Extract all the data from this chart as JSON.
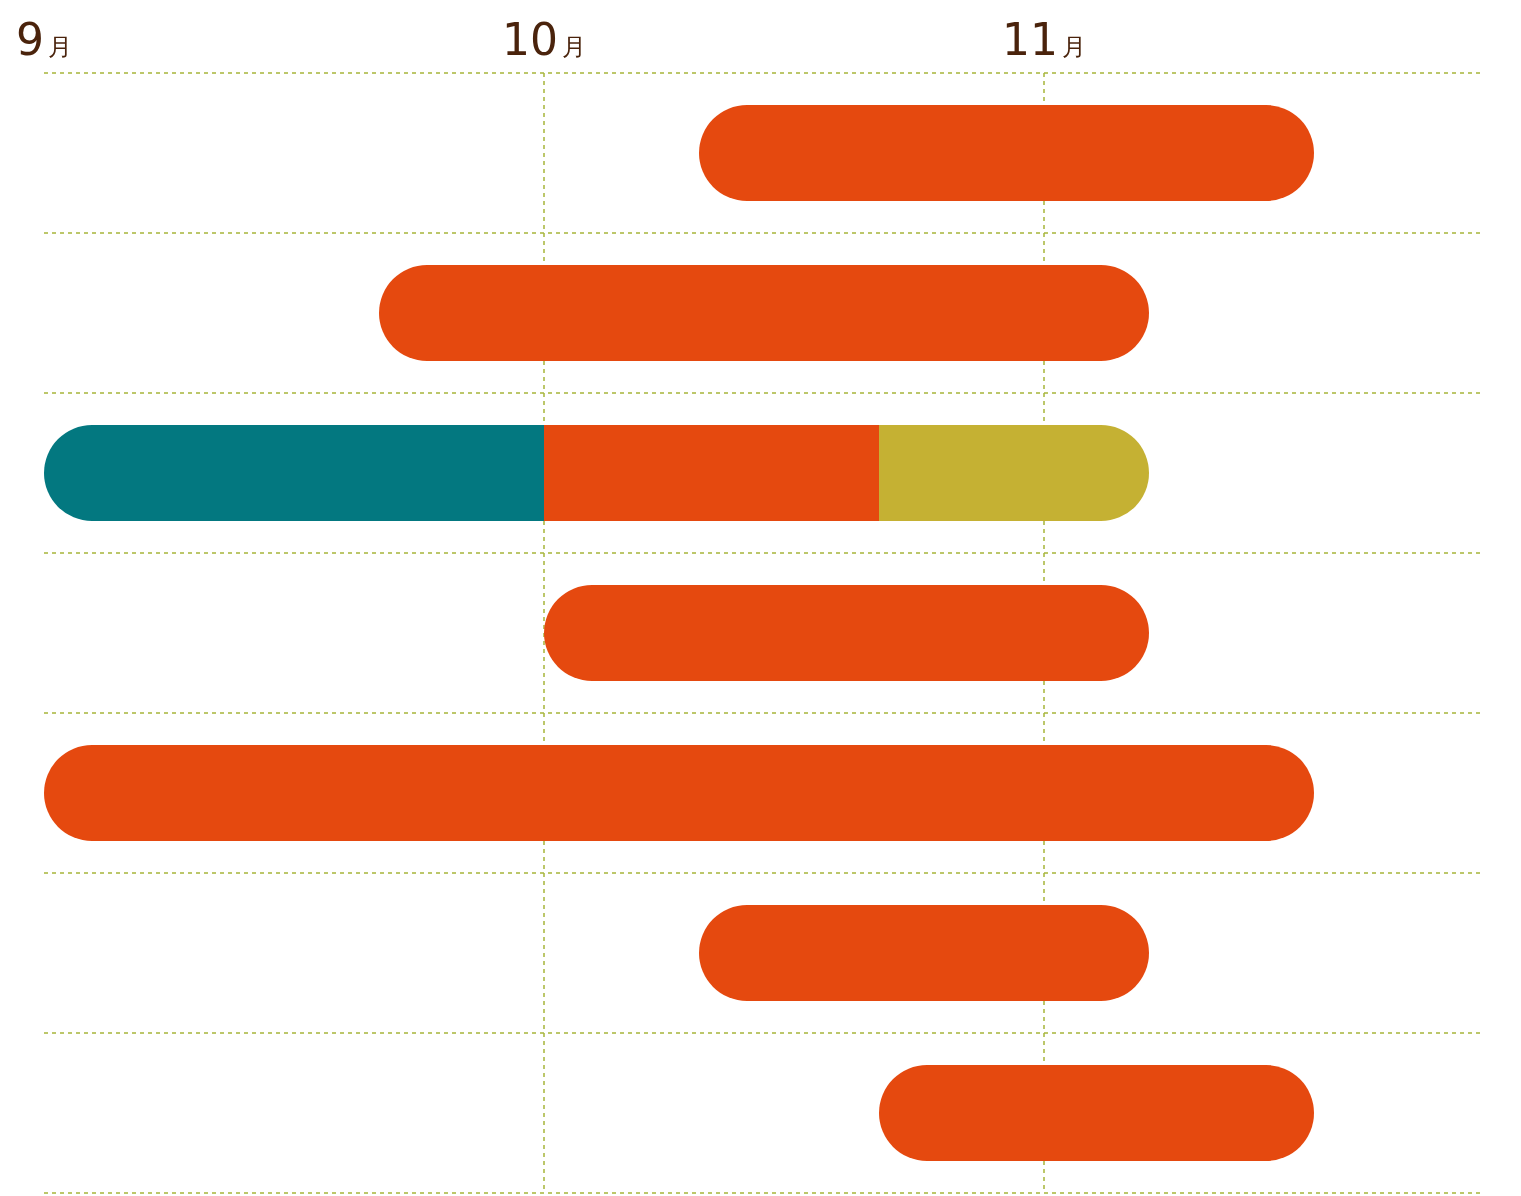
{
  "chart_data": {
    "type": "bar",
    "orientation": "horizontal",
    "grid": true,
    "tick_labels": "x",
    "categories": [
      null,
      null,
      null,
      null,
      null,
      null,
      null
    ],
    "series": [
      {
        "color": "#037880",
        "base": [
          null,
          null,
          9,
          null,
          null,
          null,
          null
        ],
        "values": [
          null,
          null,
          1,
          null,
          null,
          null,
          null
        ]
      },
      {
        "color": "#e5490f",
        "base": [
          10.31,
          9.67,
          10,
          10,
          9,
          10.31,
          10.67
        ],
        "values": [
          1.23,
          1.54,
          0.67,
          1.21,
          2.54,
          0.9,
          0.87
        ]
      },
      {
        "color": "#c5b133",
        "base": [
          null,
          null,
          10.67,
          null,
          null,
          null,
          null
        ],
        "values": [
          null,
          null,
          0.54,
          null,
          null,
          null,
          null
        ]
      }
    ],
    "xlim": [
      9,
      11.88
    ],
    "xticks": [
      {
        "value": 9,
        "label": "9月"
      },
      {
        "value": 10,
        "label": "10月"
      },
      {
        "value": 11,
        "label": "11月"
      }
    ]
  }
}
